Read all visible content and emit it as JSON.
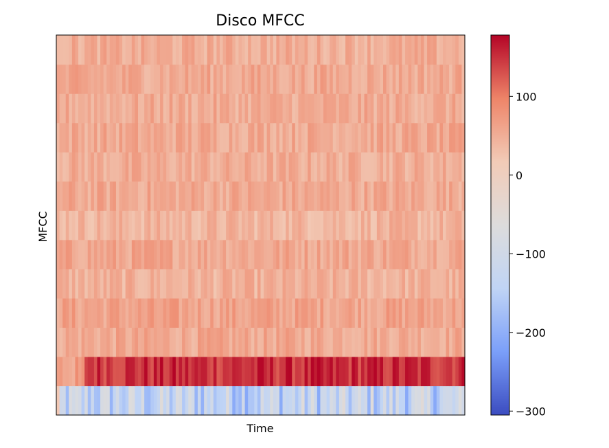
{
  "chart_data": {
    "type": "heatmap",
    "title": "Disco MFCC",
    "xlabel": "Time",
    "ylabel": "MFCC",
    "x_ticks": [],
    "y_ticks": [],
    "n_coefficients": 13,
    "n_frames": 130,
    "coefficient_mean_values": [
      -130,
      150,
      55,
      62,
      45,
      58,
      42,
      55,
      50,
      55,
      52,
      55,
      50
    ],
    "colorbar": {
      "range": [
        -305,
        178
      ],
      "ticks": [
        -300,
        -200,
        -100,
        0,
        100
      ],
      "tick_labels": [
        "−300",
        "−200",
        "−100",
        "0",
        "100"
      ],
      "colormap": "coolwarm",
      "colormap_stops": [
        "#3b4cc0",
        "#7b9ff9",
        "#c0d4f5",
        "#dddcdc",
        "#f2cbb7",
        "#ee8468",
        "#b40426"
      ]
    },
    "grid": false
  }
}
